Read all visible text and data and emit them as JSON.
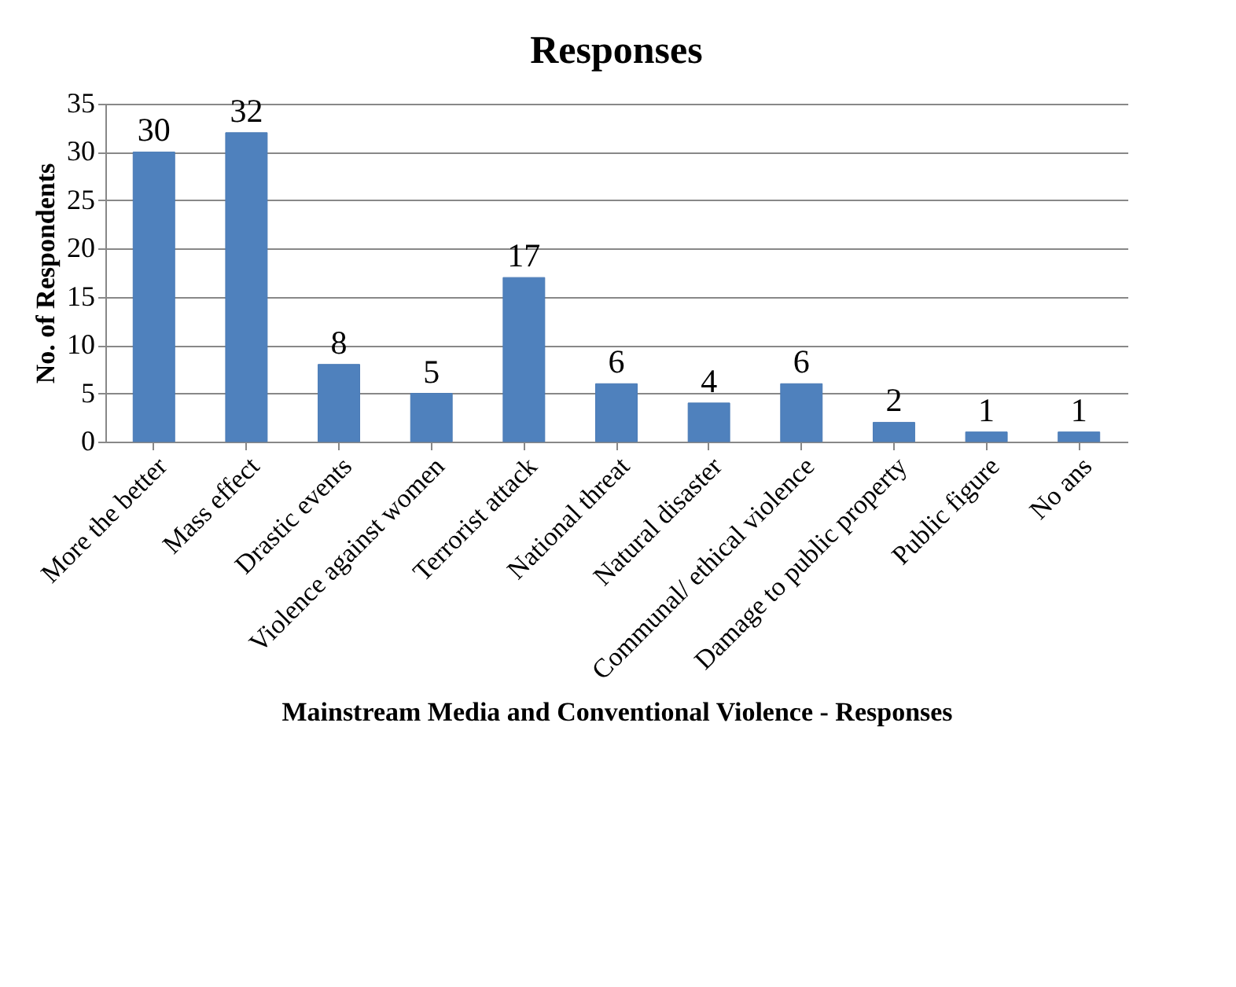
{
  "chart_data": {
    "type": "bar",
    "title": "Responses",
    "xlabel": "Mainstream Media and Conventional Violence - Responses",
    "ylabel": "No. of Respondents",
    "categories": [
      "More the better",
      "Mass effect",
      "Drastic events",
      "Violence against women",
      "Terrorist attack",
      "National threat",
      "Natural disaster",
      "Communal/ ethical violence",
      "Damage to public property",
      "Public figure",
      "No ans"
    ],
    "values": [
      30,
      32,
      8,
      5,
      17,
      6,
      4,
      6,
      2,
      1,
      1
    ],
    "color": "#4f81bd",
    "ylim": [
      0,
      35
    ],
    "yticks": [
      0,
      5,
      10,
      15,
      20,
      25,
      30,
      35
    ],
    "grid": "y",
    "data_labels": true
  }
}
